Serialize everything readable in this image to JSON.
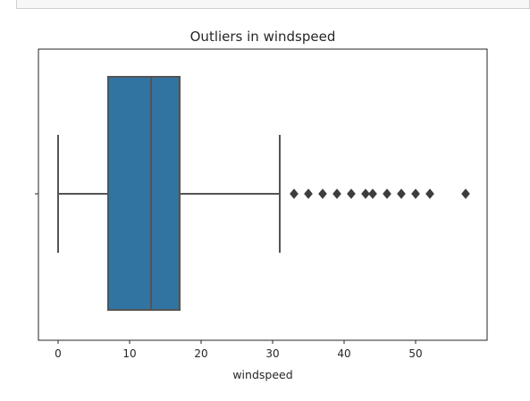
{
  "chart_data": {
    "type": "box",
    "title": "Outliers in windspeed",
    "xlabel": "windspeed",
    "ylabel": "",
    "xlim": [
      -2.7,
      60
    ],
    "xticks": [
      0,
      10,
      20,
      30,
      40,
      50
    ],
    "grid": false,
    "box_color": "#3274a1",
    "line_color": "#545454",
    "box": {
      "min": 0,
      "q1": 7,
      "median": 13,
      "q3": 17,
      "max": 31
    },
    "outliers": [
      32.9975,
      35.0008,
      36.9974,
      39.0007,
      40.9973,
      43.0006,
      43.9989,
      46.0022,
      47.9988,
      50.0021,
      51.9987,
      56.9969
    ]
  }
}
